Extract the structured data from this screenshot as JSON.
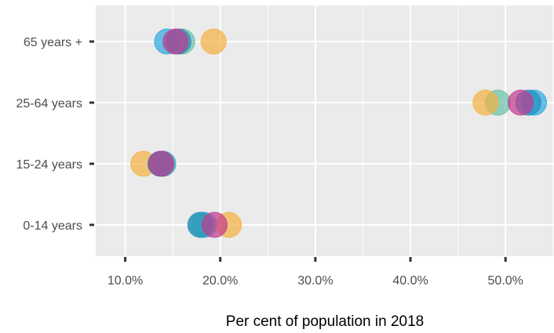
{
  "chart_data": {
    "type": "scatter",
    "xlabel": "Per cent of population in 2018",
    "ylabel": "",
    "xlim": [
      6.9,
      55.1
    ],
    "x_ticks": [
      10,
      20,
      30,
      40,
      50
    ],
    "x_tick_labels": [
      "10.0%",
      "20.0%",
      "30.0%",
      "40.0%",
      "50.0%"
    ],
    "categories": [
      "65 years +",
      "25-64 years",
      "15-24 years",
      "0-14 years"
    ],
    "grid": true,
    "legend": "none",
    "series": [
      {
        "color": "#29a8e0",
        "values": [
          14.4,
          53.0,
          14.0,
          18.3
        ]
      },
      {
        "color": "#66c2a5",
        "values": [
          16.0,
          49.2,
          13.9,
          18.0
        ]
      },
      {
        "color": "#f5b041",
        "values": [
          19.3,
          47.9,
          11.9,
          20.9
        ]
      },
      {
        "color": "#1f8fbf",
        "values": [
          15.6,
          52.4,
          13.7,
          17.9
        ]
      },
      {
        "color": "#c2398f",
        "values": [
          15.3,
          51.6,
          13.8,
          19.4
        ]
      }
    ]
  }
}
